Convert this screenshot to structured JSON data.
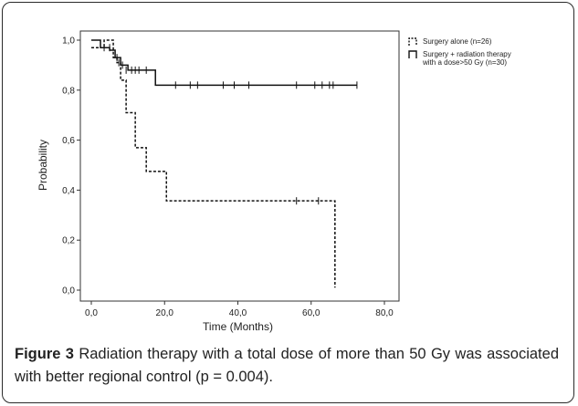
{
  "chart_data": {
    "type": "line",
    "subtype": "kaplan-meier step",
    "xlabel": "Time (Months)",
    "ylabel": "Probability",
    "xlim": [
      0,
      80
    ],
    "ylim": [
      0,
      1
    ],
    "x_ticks": [
      "0,0",
      "20,0",
      "40,0",
      "60,0",
      "80,0"
    ],
    "y_ticks": [
      "0,0",
      "0,2",
      "0,4",
      "0,6",
      "0,8",
      "1,0"
    ],
    "grid": false,
    "legend_position": "top-right",
    "series": [
      {
        "name": "Surgery alone (n=26)",
        "style": "dashed",
        "steps": [
          [
            0,
            0.97
          ],
          [
            3.5,
            1.0
          ],
          [
            6,
            0.93
          ],
          [
            7,
            0.91
          ],
          [
            8,
            0.84
          ],
          [
            9.5,
            0.71
          ],
          [
            12,
            0.57
          ],
          [
            15,
            0.475
          ],
          [
            20.5,
            0.357
          ],
          [
            66.5,
            0.01
          ]
        ],
        "censored": [
          [
            5,
            0.97
          ],
          [
            7.5,
            0.91
          ],
          [
            56,
            0.357
          ],
          [
            62,
            0.357
          ]
        ],
        "end_x": 66.5
      },
      {
        "name": "Surgery + radiation therapy with a dose>50 Gy (n=30)",
        "style": "solid",
        "steps": [
          [
            0,
            1.0
          ],
          [
            2.5,
            0.97
          ],
          [
            5,
            0.96
          ],
          [
            6.5,
            0.93
          ],
          [
            8,
            0.9
          ],
          [
            10,
            0.88
          ],
          [
            17.5,
            0.82
          ]
        ],
        "censored": [
          [
            3.5,
            0.97
          ],
          [
            7,
            0.93
          ],
          [
            8.5,
            0.9
          ],
          [
            9.5,
            0.88
          ],
          [
            11,
            0.88
          ],
          [
            12,
            0.88
          ],
          [
            13,
            0.88
          ],
          [
            15,
            0.88
          ],
          [
            23,
            0.82
          ],
          [
            27,
            0.82
          ],
          [
            29,
            0.82
          ],
          [
            36,
            0.82
          ],
          [
            39,
            0.82
          ],
          [
            43,
            0.82
          ],
          [
            56,
            0.82
          ],
          [
            61,
            0.82
          ],
          [
            63,
            0.82
          ],
          [
            65,
            0.82
          ],
          [
            66,
            0.82
          ],
          [
            72.5,
            0.82
          ]
        ],
        "end_x": 72.5
      }
    ]
  },
  "legend": [
    {
      "lines": [
        "Surgery alone (n=26)"
      ]
    },
    {
      "lines": [
        "Surgery + radiation therapy",
        "with a dose>50 Gy (n=30)"
      ]
    }
  ],
  "caption": {
    "figure_label": "Figure 3",
    "text": " Radiation therapy with a total dose of more than 50 Gy was associated with better regional control (p = 0.004)."
  }
}
